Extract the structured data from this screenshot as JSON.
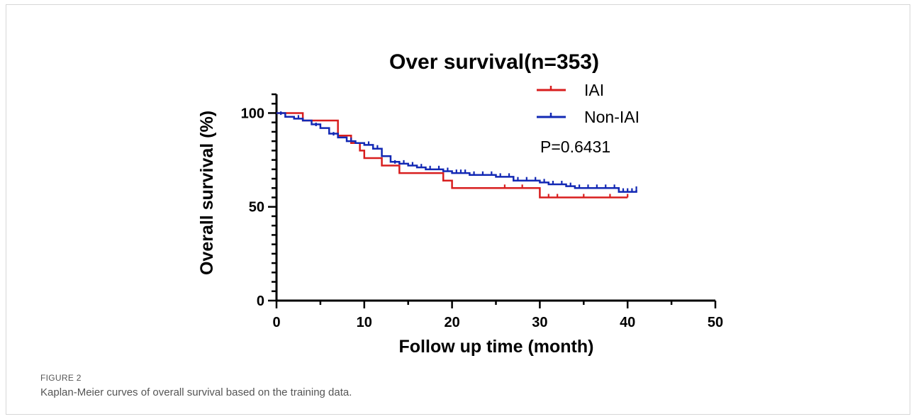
{
  "figure": {
    "label": "FIGURE 2",
    "caption": "Kaplan-Meier curves of overall survival based on the training data."
  },
  "chart_data": {
    "type": "line",
    "title": "Over survival(n=353)",
    "xlabel": "Follow up time (month)",
    "ylabel": "Overall survival (%)",
    "xlim": [
      0,
      50
    ],
    "ylim": [
      0,
      110
    ],
    "x_ticks": [
      0,
      10,
      20,
      30,
      40,
      50
    ],
    "x_tick_labels": [
      "0",
      "10",
      "20",
      "30",
      "40",
      "50"
    ],
    "y_ticks": [
      0,
      50,
      100
    ],
    "y_tick_labels": [
      "0",
      "50",
      "100"
    ],
    "grid": false,
    "legend_position": "top-right",
    "annotation": "P=0.6431",
    "series": [
      {
        "name": "IAI",
        "color": "#d81e1e",
        "steps": [
          [
            0,
            100
          ],
          [
            3,
            96
          ],
          [
            7,
            88
          ],
          [
            8.5,
            84
          ],
          [
            9.5,
            80
          ],
          [
            10,
            76
          ],
          [
            12,
            72
          ],
          [
            14,
            68
          ],
          [
            19,
            64
          ],
          [
            20,
            60
          ],
          [
            30,
            55
          ],
          [
            40,
            55
          ]
        ],
        "censored": [
          [
            26,
            60
          ],
          [
            28,
            60
          ],
          [
            31,
            55
          ],
          [
            32,
            55
          ],
          [
            35,
            55
          ],
          [
            38,
            55
          ],
          [
            40,
            55
          ]
        ]
      },
      {
        "name": "Non-IAI",
        "color": "#1228b4",
        "steps": [
          [
            0,
            100
          ],
          [
            1,
            98
          ],
          [
            2,
            97
          ],
          [
            3,
            96
          ],
          [
            4,
            94
          ],
          [
            5,
            92
          ],
          [
            6,
            89
          ],
          [
            7,
            87
          ],
          [
            8,
            85
          ],
          [
            9,
            84
          ],
          [
            10,
            83
          ],
          [
            11,
            81
          ],
          [
            12,
            77
          ],
          [
            13,
            74
          ],
          [
            14,
            73
          ],
          [
            15,
            72
          ],
          [
            16,
            71
          ],
          [
            17,
            70
          ],
          [
            19,
            69
          ],
          [
            20,
            68
          ],
          [
            22,
            67
          ],
          [
            25,
            66
          ],
          [
            27,
            64
          ],
          [
            30,
            63
          ],
          [
            31,
            62
          ],
          [
            33,
            61
          ],
          [
            34,
            60
          ],
          [
            39,
            58
          ],
          [
            41,
            59
          ]
        ],
        "censored": [
          [
            0.5,
            99
          ],
          [
            2.5,
            97
          ],
          [
            4.5,
            93
          ],
          [
            6.5,
            88
          ],
          [
            8.5,
            85
          ],
          [
            10.5,
            83
          ],
          [
            11.5,
            81
          ],
          [
            13.5,
            73
          ],
          [
            14.5,
            73
          ],
          [
            15.5,
            72
          ],
          [
            16.5,
            71
          ],
          [
            17.5,
            70
          ],
          [
            18.5,
            70
          ],
          [
            19.5,
            69
          ],
          [
            20.5,
            68
          ],
          [
            21,
            68
          ],
          [
            21.5,
            68
          ],
          [
            22.5,
            67
          ],
          [
            23.5,
            67
          ],
          [
            24.5,
            67
          ],
          [
            25.5,
            66
          ],
          [
            26.5,
            66
          ],
          [
            27.5,
            64
          ],
          [
            28.5,
            64
          ],
          [
            29.5,
            64
          ],
          [
            30.5,
            63
          ],
          [
            31.5,
            62
          ],
          [
            32.5,
            62
          ],
          [
            33.5,
            61
          ],
          [
            34.5,
            60
          ],
          [
            35.5,
            60
          ],
          [
            36.5,
            60
          ],
          [
            37.5,
            60
          ],
          [
            38.5,
            60
          ],
          [
            39.5,
            58
          ],
          [
            40,
            58
          ],
          [
            40.5,
            58
          ],
          [
            41,
            59
          ]
        ]
      }
    ]
  }
}
